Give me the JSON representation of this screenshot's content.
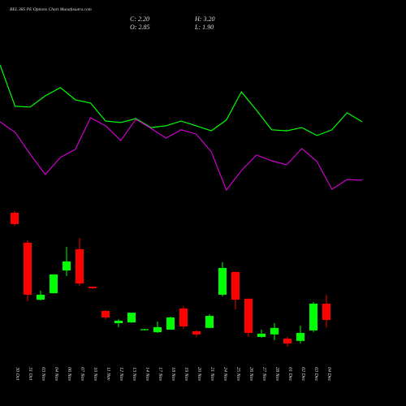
{
  "chart_data": {
    "type": "candlestick",
    "title": "BEL 385 PE Options Chart Munafasutra.com",
    "info": [
      "C: 2.20",
      "H: 3.20",
      "O: 2.85",
      "L: 1.90"
    ],
    "categories": [
      "30 Oct",
      "31 Oct",
      "03 Nov",
      "04 Nov",
      "06 Nov",
      "07 Nov",
      "10 Nov",
      "11 Nov",
      "12 Nov",
      "13 Nov",
      "14 Nov",
      "17 Nov",
      "18 Nov",
      "19 Nov",
      "20 Nov",
      "21 Nov",
      "24 Nov",
      "25 Nov",
      "26 Nov",
      "27 Nov",
      "28 Nov",
      "01 Dec",
      "02 Dec",
      "03 Dec",
      "04 Dec"
    ],
    "open": [
      6.49,
      5.29,
      3.01,
      3.27,
      4.18,
      5.03,
      3.53,
      2.56,
      2.07,
      2.1,
      1.79,
      1.71,
      1.81,
      2.66,
      1.75,
      1.88,
      3.21,
      4.12,
      3.05,
      1.52,
      1.62,
      1.45,
      1.36,
      1.78,
      2.85
    ],
    "high": [
      6.56,
      5.39,
      3.37,
      4.02,
      5.13,
      5.48,
      3.53,
      2.59,
      2.23,
      2.49,
      1.84,
      2.14,
      2.33,
      2.75,
      1.78,
      2.43,
      4.51,
      4.12,
      3.05,
      1.81,
      2.07,
      1.52,
      1.97,
      2.92,
      3.2
    ],
    "low": [
      5.97,
      2.95,
      2.98,
      3.27,
      3.96,
      3.57,
      3.44,
      2.23,
      1.91,
      2.1,
      1.78,
      1.68,
      1.81,
      1.84,
      1.52,
      1.88,
      3.14,
      2.62,
      1.52,
      1.49,
      1.39,
      1.13,
      1.26,
      1.71,
      1.9
    ],
    "close": [
      6.04,
      3.21,
      3.21,
      4.02,
      4.54,
      3.66,
      3.47,
      2.3,
      2.17,
      2.49,
      1.83,
      1.91,
      2.3,
      1.94,
      1.62,
      2.36,
      4.28,
      3.01,
      1.68,
      1.65,
      1.88,
      1.26,
      1.68,
      2.85,
      2.2
    ],
    "up_color": "#00ff00",
    "down_color": "#ff0000",
    "lines": [
      {
        "color": "#00ff00",
        "values": [
          12.41,
          10.75,
          10.72,
          11.17,
          11.5,
          11.01,
          10.88,
          10.16,
          10.1,
          10.26,
          9.9,
          9.97,
          10.16,
          9.97,
          9.77,
          10.2,
          11.33,
          10.59,
          9.81,
          9.77,
          9.9,
          9.58,
          9.81,
          10.49,
          10.13
        ]
      },
      {
        "color": "#cc00cc",
        "values": [
          10.13,
          9.71,
          8.83,
          8.02,
          8.7,
          9.03,
          10.29,
          9.97,
          9.38,
          10.23,
          9.87,
          9.48,
          9.81,
          9.64,
          8.93,
          7.4,
          8.18,
          8.8,
          8.57,
          8.41,
          9.06,
          8.54,
          7.43,
          7.82,
          7.79
        ]
      }
    ],
    "ylim": [
      -1.245,
      15.005
    ]
  }
}
